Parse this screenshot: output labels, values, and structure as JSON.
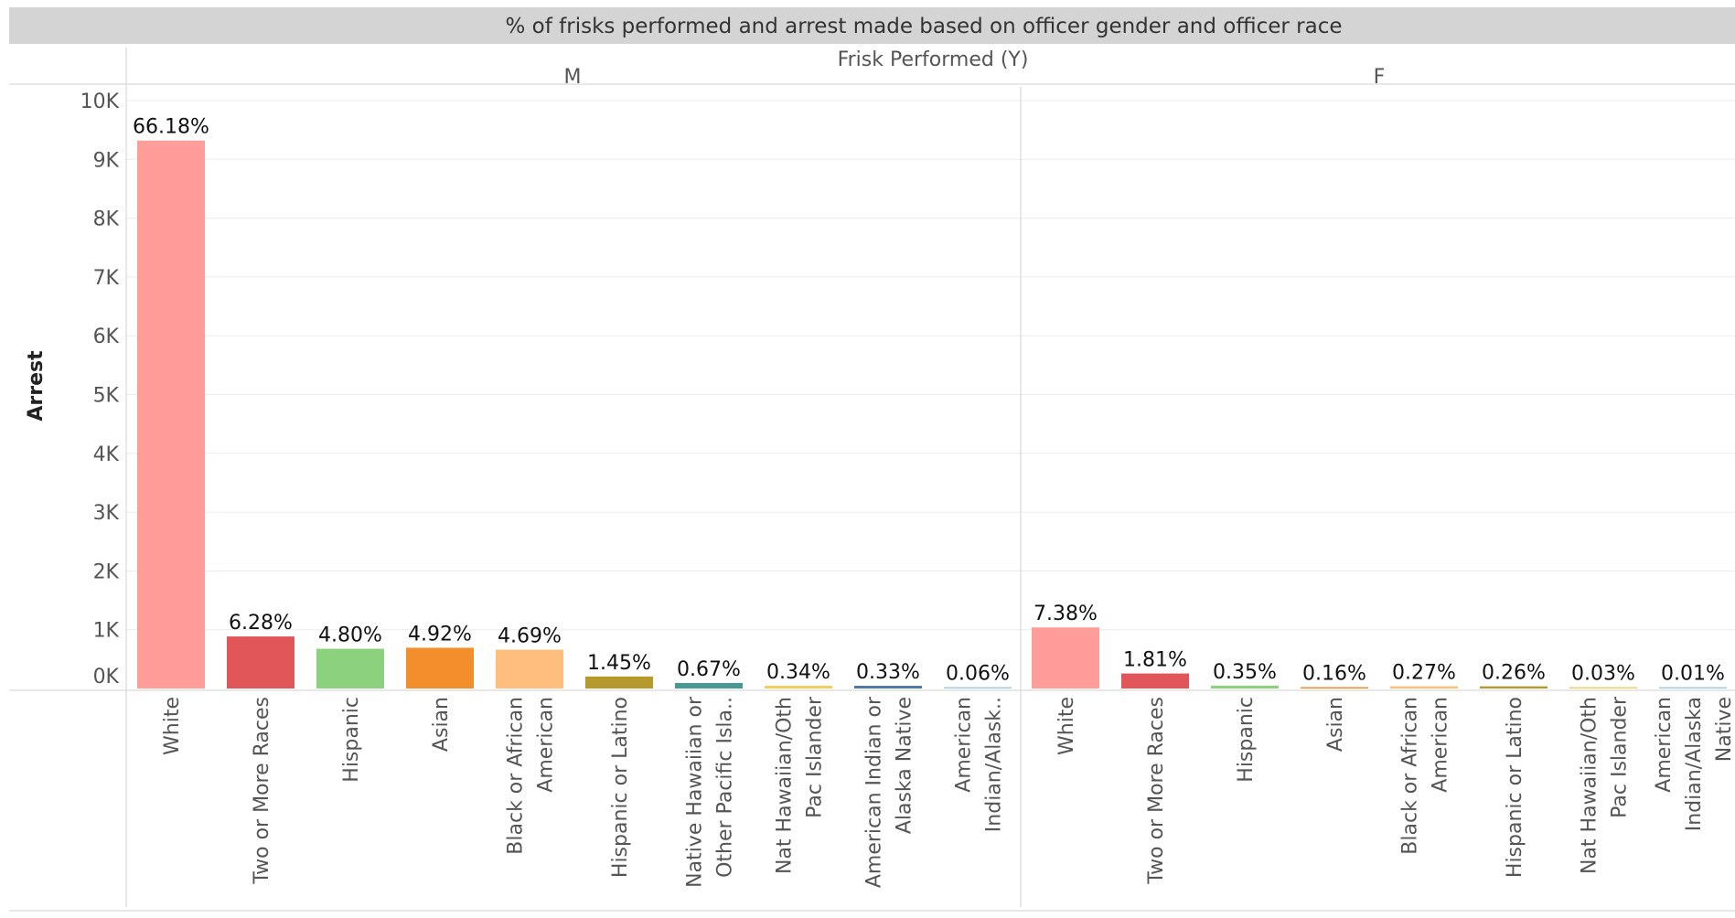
{
  "chart_data": {
    "type": "bar",
    "title": "% of frisks performed and arrest made based  on officer gender and officer race",
    "column_header": "Frisk Performed (Y)",
    "ylabel": "Arrest",
    "ylim": [
      0,
      10000
    ],
    "y_ticks": [
      "0K",
      "1K",
      "2K",
      "3K",
      "4K",
      "5K",
      "6K",
      "7K",
      "8K",
      "9K",
      "10K"
    ],
    "grid": true,
    "panels": [
      {
        "name": "M",
        "categories": [
          [
            "White"
          ],
          [
            "Two or More Races"
          ],
          [
            "Hispanic"
          ],
          [
            "Asian"
          ],
          [
            "Black or African",
            "American"
          ],
          [
            "Hispanic or Latino"
          ],
          [
            "Native Hawaiian or",
            "Other Pacific Isla.."
          ],
          [
            "Nat Hawaiian/Oth",
            "Pac Islander"
          ],
          [
            "American Indian or",
            "Alaska Native"
          ],
          [
            "American",
            "Indian/Alask.."
          ]
        ],
        "values": [
          9320,
          885,
          676,
          693,
          660,
          204,
          94,
          48,
          46,
          8
        ],
        "labels": [
          "66.18%",
          "6.28%",
          "4.80%",
          "4.92%",
          "4.69%",
          "1.45%",
          "0.67%",
          "0.34%",
          "0.33%",
          "0.06%"
        ],
        "colors": [
          "#ff9d9a",
          "#e15759",
          "#8cd17d",
          "#f28e2b",
          "#ffbe7d",
          "#b6992d",
          "#499894",
          "#f1ce63",
          "#4e79a7",
          "#a0cbe8"
        ]
      },
      {
        "name": "F",
        "categories": [
          [
            "White"
          ],
          [
            "Two or More Races"
          ],
          [
            "Hispanic"
          ],
          [
            "Asian"
          ],
          [
            "Black or African",
            "American"
          ],
          [
            "Hispanic or Latino"
          ],
          [
            "Nat Hawaiian/Oth",
            "Pac Islander"
          ],
          [
            "American",
            "Indian/Alaska",
            "Native"
          ]
        ],
        "values": [
          1039,
          255,
          49,
          23,
          38,
          37,
          4,
          1
        ],
        "labels": [
          "7.38%",
          "1.81%",
          "0.35%",
          "0.16%",
          "0.27%",
          "0.26%",
          "0.03%",
          "0.01%"
        ],
        "colors": [
          "#ff9d9a",
          "#e15759",
          "#8cd17d",
          "#f28e2b",
          "#ffbe7d",
          "#b6992d",
          "#f1ce63",
          "#a0cbe8"
        ]
      }
    ]
  }
}
